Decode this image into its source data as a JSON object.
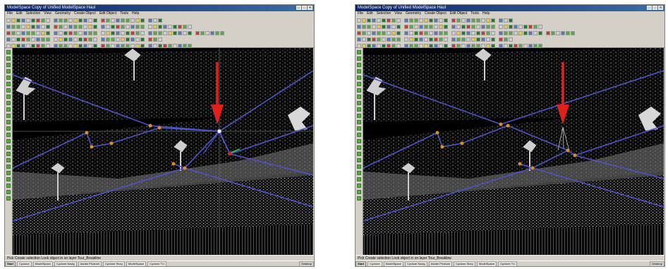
{
  "screens": [
    {
      "title": "ModelSpace Copy of Unified ModelSpace Haul",
      "menus": [
        "File",
        "Edit",
        "Selection",
        "View",
        "Geometry",
        "Create Object",
        "Edit Object",
        "Tools",
        "Help"
      ],
      "status": "Pick Create selection Look object in on layer Tour_Breakline",
      "taskbar": {
        "start": "Start",
        "items": [
          "Cyclone",
          "ModelSpace",
          "Cyclone Navig",
          "Adobe Photosh",
          "Cyclone Story",
          "ModelSpace",
          "Cyclone TU"
        ],
        "clock": "Desktop"
      }
    },
    {
      "title": "ModelSpace Copy of Unified ModelSpace Haul",
      "menus": [
        "File",
        "Edit",
        "Selection",
        "View",
        "Geometry",
        "Create Object",
        "Edit Object",
        "Tools",
        "Help"
      ],
      "status": "Pick Create selection Look object in on layer Tour_Breakline",
      "taskbar": {
        "start": "Start",
        "items": [
          "Cyclone",
          "ModelSpace",
          "Cyclone Navig",
          "Adobe Photosh",
          "Cyclone Story",
          "ModelSpace",
          "Cyclone TU"
        ],
        "clock": "Desktop"
      }
    }
  ],
  "colors": {
    "breakline": "#4a55c8",
    "vertex": "#e08a2a",
    "arrow": "#e0201e",
    "point_cloud": "#bdbdbd",
    "crosshair": "#5a6a5a"
  },
  "icons": [
    "close-icon",
    "red-down-arrow-icon",
    "vertex-marker-icon"
  ]
}
